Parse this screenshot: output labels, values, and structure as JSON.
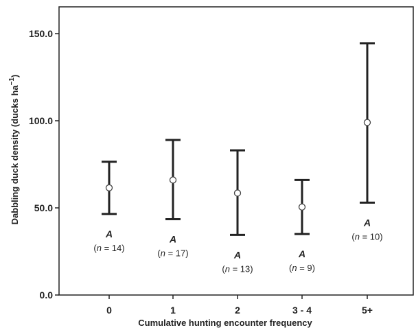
{
  "chart_data": {
    "type": "errorbar",
    "title": "",
    "xlabel": "Cumulative hunting encounter frequency",
    "ylabel": "Dabbling duck density (ducks ha",
    "ylabel_superscript": "−1",
    "ylabel_close": ")",
    "ylim": [
      0,
      165
    ],
    "yticks": [
      0,
      50,
      100,
      150
    ],
    "ytick_labels": [
      "0.0",
      "50.0",
      "100.0",
      "150.0"
    ],
    "categories": [
      "0",
      "1",
      "2",
      "3 - 4",
      "5+"
    ],
    "series": [
      {
        "mean": [
          61.5,
          66,
          58.5,
          50.5,
          99
        ],
        "lower": [
          46.5,
          43.5,
          34.5,
          35,
          53
        ],
        "upper": [
          76.5,
          89,
          83,
          66,
          144.5
        ]
      }
    ],
    "annotations": [
      {
        "category": "0",
        "letter": "A",
        "n_prefix": "(",
        "n_italic": "n",
        "n_suffix": " =  14)"
      },
      {
        "category": "1",
        "letter": "A",
        "n_prefix": "(",
        "n_italic": "n",
        "n_suffix": " = 17)"
      },
      {
        "category": "2",
        "letter": "A",
        "n_prefix": "(",
        "n_italic": "n",
        "n_suffix": " = 13)"
      },
      {
        "category": "3 - 4",
        "letter": "A",
        "n_prefix": "(",
        "n_italic": "n",
        "n_suffix": " = 9)"
      },
      {
        "category": "5+",
        "letter": "A",
        "n_prefix": "(",
        "n_italic": "n",
        "n_suffix": " = 10)"
      }
    ],
    "grid": false,
    "legend": "none"
  }
}
